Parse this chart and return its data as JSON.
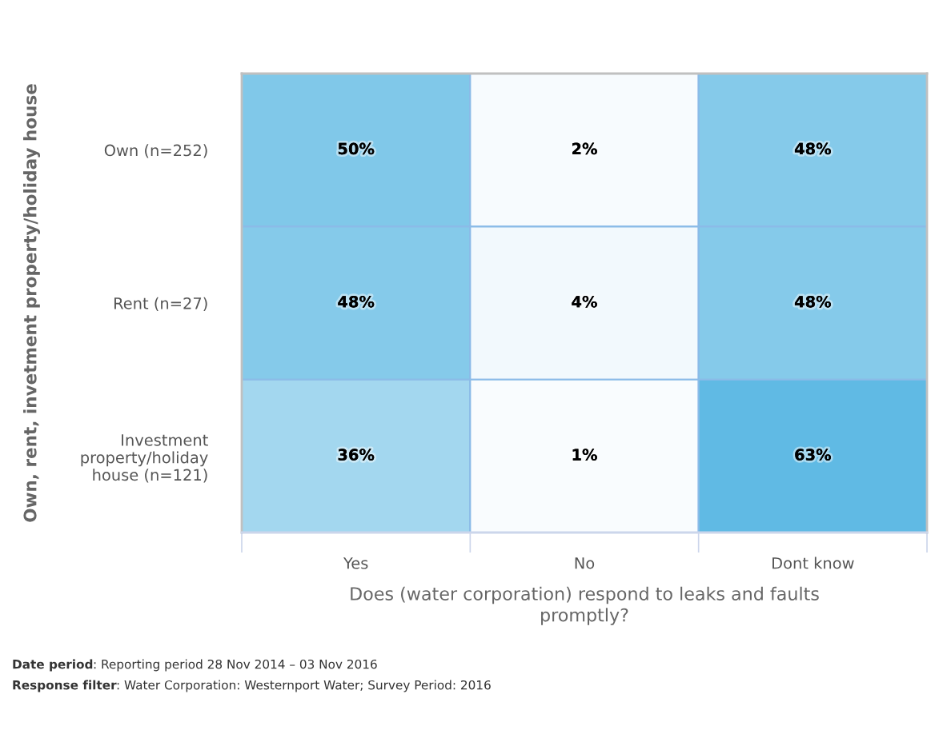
{
  "chart_data": {
    "type": "heatmap",
    "xlabel": "Does (water corporation) respond to leaks and faults\npromptly?",
    "ylabel": "Own, rent, invetment property/holiday house",
    "categories": [
      "Yes",
      "No",
      "Dont know"
    ],
    "y_categories": [
      "Own (n=252)",
      "Rent (n=27)",
      "Investment\nproperty/holiday\nhouse (n=121)"
    ],
    "cells": [
      [
        50,
        2,
        48
      ],
      [
        48,
        4,
        48
      ],
      [
        36,
        1,
        63
      ]
    ],
    "cell_labels": [
      [
        "50%",
        "2%",
        "48%"
      ],
      [
        "48%",
        "4%",
        "48%"
      ],
      [
        "36%",
        "1%",
        "63%"
      ]
    ],
    "colors": [
      "#f9fcfe",
      "#60bae4"
    ],
    "annotations": [
      "Date period: Reporting period 28 Nov 2014 – 03 Nov 2016",
      "Response filter: Water Corporation: Westernport Water; Survey Period: 2016"
    ]
  }
}
